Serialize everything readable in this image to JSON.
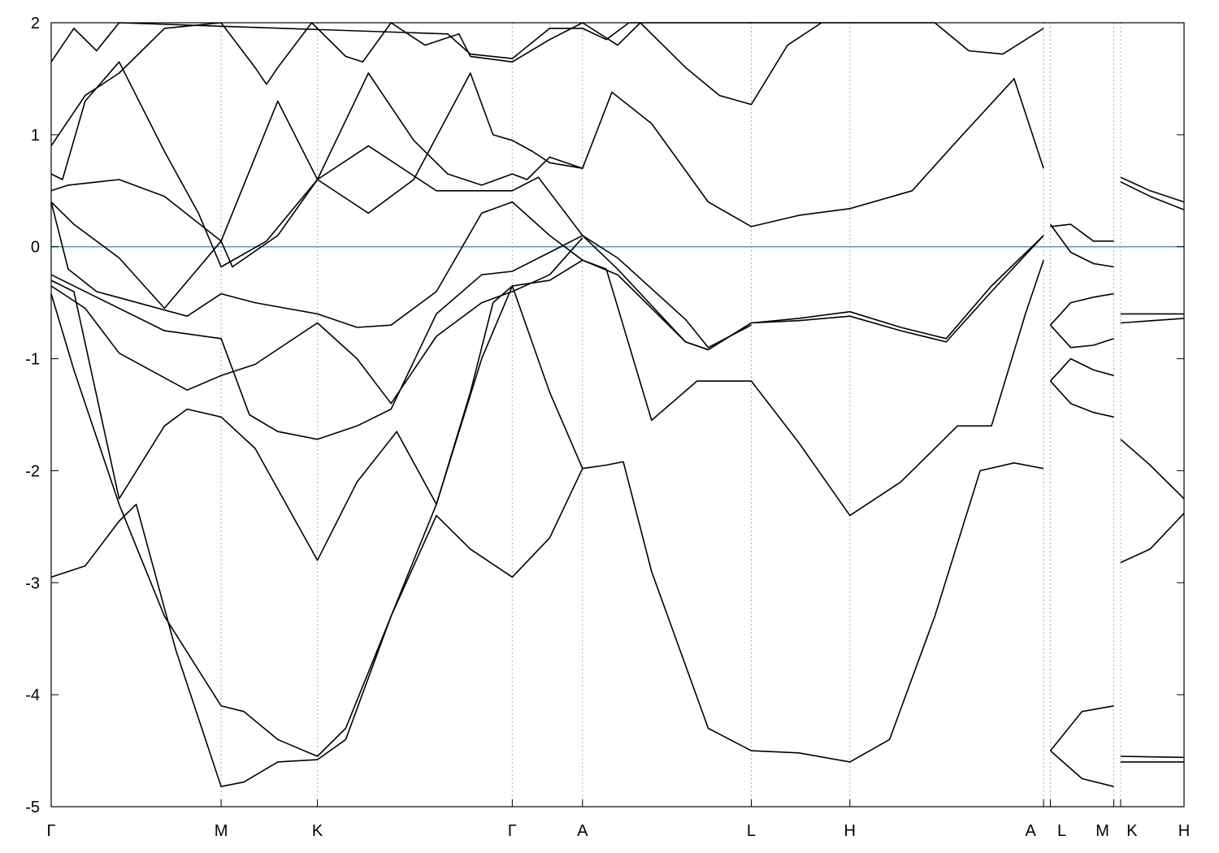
{
  "chart_data": {
    "type": "line",
    "title": "",
    "xlabel": "",
    "ylabel": "",
    "xlim": [
      0,
      10.0
    ],
    "ylim": [
      -5,
      2
    ],
    "y_ticks": [
      2,
      1,
      0,
      -1,
      -2,
      -3,
      -4,
      -5
    ],
    "y_tick_labels": [
      "2",
      "1",
      "0",
      "-1",
      "-2",
      "-3",
      "-4",
      "-5"
    ],
    "k_points": [
      {
        "label": "Γ",
        "x": 0.0
      },
      {
        "label": "M",
        "x": 1.5
      },
      {
        "label": "K",
        "x": 2.35
      },
      {
        "label": "Γ",
        "x": 4.07
      },
      {
        "label": "A",
        "x": 4.69
      },
      {
        "label": "L",
        "x": 6.18
      },
      {
        "label": "H",
        "x": 7.05
      },
      {
        "label": "A",
        "x": 8.76
      },
      {
        "label": "L",
        "x": 8.82
      },
      {
        "label": "M",
        "x": 9.38
      },
      {
        "label": "K",
        "x": 9.44
      },
      {
        "label": "H",
        "x": 10.0
      }
    ],
    "reference_lines": [
      {
        "name": "Fermi level",
        "y": 0,
        "color": "#4aa8c4"
      }
    ],
    "grid": "dashed vertical lines at high-symmetry points",
    "series": [
      {
        "values": [
          [
            0,
            -2.95
          ],
          [
            0.3,
            -2.85
          ],
          [
            0.6,
            -2.45
          ],
          [
            0.75,
            -2.3
          ],
          [
            1.1,
            -3.6
          ],
          [
            1.5,
            -4.82
          ],
          [
            1.7,
            -4.78
          ],
          [
            2.0,
            -4.6
          ],
          [
            2.35,
            -4.58
          ],
          [
            2.6,
            -4.4
          ],
          [
            3.0,
            -3.3
          ],
          [
            3.4,
            -2.4
          ],
          [
            3.7,
            -2.7
          ],
          [
            4.07,
            -2.95
          ],
          [
            4.4,
            -2.6
          ],
          [
            4.69,
            -1.98
          ],
          [
            4.9,
            -1.95
          ],
          [
            5.05,
            -1.92
          ],
          [
            5.3,
            -2.9
          ],
          [
            5.8,
            -4.3
          ],
          [
            6.18,
            -4.5
          ],
          [
            6.6,
            -4.52
          ],
          [
            7.05,
            -4.6
          ],
          [
            7.4,
            -4.4
          ],
          [
            7.8,
            -3.3
          ],
          [
            8.2,
            -2.0
          ],
          [
            8.5,
            -1.93
          ],
          [
            8.76,
            -1.98
          ]
        ]
      },
      {
        "values": [
          [
            0,
            -0.42
          ],
          [
            0.2,
            -1.1
          ],
          [
            0.6,
            -2.3
          ],
          [
            1.0,
            -3.3
          ],
          [
            1.5,
            -4.1
          ],
          [
            1.7,
            -4.15
          ],
          [
            2.0,
            -4.4
          ],
          [
            2.35,
            -4.55
          ],
          [
            2.6,
            -4.3
          ],
          [
            3.0,
            -3.3
          ],
          [
            3.4,
            -2.3
          ],
          [
            3.7,
            -1.3
          ],
          [
            3.9,
            -0.5
          ],
          [
            4.07,
            -0.35
          ],
          [
            4.4,
            -1.3
          ],
          [
            4.69,
            -1.98
          ]
        ]
      },
      {
        "values": [
          [
            0,
            -0.3
          ],
          [
            0.2,
            -0.4
          ],
          [
            0.6,
            -2.25
          ],
          [
            1.0,
            -1.6
          ],
          [
            1.2,
            -1.45
          ],
          [
            1.5,
            -1.52
          ],
          [
            1.8,
            -1.8
          ],
          [
            2.35,
            -2.8
          ],
          [
            2.7,
            -2.1
          ],
          [
            3.05,
            -1.65
          ],
          [
            3.4,
            -2.3
          ],
          [
            3.8,
            -1.0
          ],
          [
            4.07,
            -0.35
          ],
          [
            4.4,
            -0.3
          ],
          [
            4.69,
            -0.12
          ],
          [
            4.9,
            -0.2
          ],
          [
            5.3,
            -1.55
          ],
          [
            5.7,
            -1.2
          ],
          [
            6.18,
            -1.2
          ],
          [
            6.6,
            -1.75
          ],
          [
            7.05,
            -2.4
          ],
          [
            7.5,
            -2.1
          ],
          [
            8.0,
            -1.6
          ],
          [
            8.3,
            -1.6
          ],
          [
            8.6,
            -0.6
          ],
          [
            8.76,
            -0.12
          ]
        ]
      },
      {
        "values": [
          [
            0,
            -0.35
          ],
          [
            0.3,
            -0.55
          ],
          [
            0.6,
            -0.95
          ],
          [
            1.2,
            -1.28
          ],
          [
            1.5,
            -1.15
          ],
          [
            1.8,
            -1.05
          ],
          [
            2.35,
            -0.68
          ],
          [
            2.7,
            -1.0
          ],
          [
            3.0,
            -1.4
          ],
          [
            3.4,
            -0.8
          ],
          [
            3.8,
            -0.5
          ],
          [
            4.07,
            -0.4
          ],
          [
            4.4,
            -0.25
          ],
          [
            4.69,
            0.08
          ]
        ]
      },
      {
        "values": [
          [
            0,
            -0.25
          ],
          [
            0.4,
            -0.45
          ],
          [
            1.0,
            -0.75
          ],
          [
            1.5,
            -0.82
          ],
          [
            1.75,
            -1.5
          ],
          [
            2.0,
            -1.65
          ],
          [
            2.35,
            -1.72
          ],
          [
            2.7,
            -1.6
          ],
          [
            3.0,
            -1.45
          ],
          [
            3.4,
            -0.6
          ],
          [
            3.8,
            -0.25
          ],
          [
            4.07,
            -0.22
          ],
          [
            4.4,
            -0.05
          ],
          [
            4.69,
            0.1
          ],
          [
            5.0,
            -0.2
          ],
          [
            5.6,
            -0.85
          ],
          [
            5.8,
            -0.92
          ],
          [
            6.18,
            -0.68
          ],
          [
            6.6,
            -0.66
          ],
          [
            7.05,
            -0.62
          ],
          [
            7.5,
            -0.75
          ],
          [
            7.9,
            -0.85
          ],
          [
            8.3,
            -0.4
          ],
          [
            8.76,
            0.1
          ]
        ]
      },
      {
        "values": [
          [
            0,
            0.4
          ],
          [
            0.15,
            -0.2
          ],
          [
            0.4,
            -0.4
          ],
          [
            1.2,
            -0.62
          ],
          [
            1.5,
            -0.42
          ],
          [
            1.8,
            -0.5
          ],
          [
            2.35,
            -0.6
          ],
          [
            2.7,
            -0.72
          ],
          [
            3.0,
            -0.7
          ],
          [
            3.4,
            -0.4
          ],
          [
            3.8,
            0.3
          ],
          [
            4.07,
            0.4
          ],
          [
            4.4,
            0.1
          ],
          [
            4.69,
            -0.12
          ],
          [
            5.0,
            -0.25
          ],
          [
            5.6,
            -0.85
          ],
          [
            5.8,
            -0.92
          ],
          [
            6.18,
            -0.68
          ],
          [
            6.6,
            -0.64
          ],
          [
            7.05,
            -0.58
          ],
          [
            7.5,
            -0.72
          ],
          [
            7.9,
            -0.82
          ],
          [
            8.3,
            -0.35
          ],
          [
            8.76,
            0.1
          ]
        ]
      },
      {
        "values": [
          [
            0,
            0.4
          ],
          [
            0.2,
            0.2
          ],
          [
            0.6,
            -0.1
          ],
          [
            1.0,
            -0.55
          ],
          [
            1.5,
            0.05
          ],
          [
            1.8,
            0.8
          ],
          [
            2.0,
            1.3
          ],
          [
            2.35,
            0.6
          ],
          [
            2.8,
            0.3
          ],
          [
            3.2,
            0.6
          ],
          [
            3.7,
            1.55
          ],
          [
            3.9,
            1.0
          ],
          [
            4.07,
            0.95
          ],
          [
            4.25,
            0.85
          ],
          [
            4.4,
            0.75
          ],
          [
            4.69,
            0.7
          ],
          [
            4.95,
            1.38
          ],
          [
            5.3,
            1.1
          ],
          [
            5.8,
            0.4
          ],
          [
            6.18,
            0.18
          ],
          [
            6.6,
            0.28
          ],
          [
            7.05,
            0.34
          ],
          [
            7.6,
            0.5
          ],
          [
            8.0,
            0.95
          ],
          [
            8.5,
            1.5
          ],
          [
            8.76,
            0.7
          ]
        ]
      },
      {
        "values": [
          [
            0,
            0.5
          ],
          [
            0.15,
            0.55
          ],
          [
            0.6,
            0.6
          ],
          [
            1.0,
            0.45
          ],
          [
            1.5,
            0.05
          ],
          [
            1.6,
            -0.18
          ],
          [
            2.0,
            0.1
          ],
          [
            2.35,
            0.6
          ],
          [
            2.8,
            0.9
          ],
          [
            3.4,
            0.5
          ],
          [
            4.07,
            0.5
          ],
          [
            4.3,
            0.62
          ],
          [
            4.69,
            0.1
          ],
          [
            5.0,
            -0.1
          ],
          [
            5.6,
            -0.65
          ],
          [
            5.8,
            -0.9
          ],
          [
            6.18,
            -0.7
          ]
        ]
      },
      {
        "values": [
          [
            0,
            0.65
          ],
          [
            0.1,
            0.6
          ],
          [
            0.3,
            1.3
          ],
          [
            0.6,
            1.65
          ],
          [
            1.0,
            0.85
          ],
          [
            1.3,
            0.3
          ],
          [
            1.5,
            -0.18
          ],
          [
            1.9,
            0.05
          ],
          [
            2.35,
            0.6
          ],
          [
            2.8,
            1.55
          ],
          [
            3.2,
            0.95
          ],
          [
            3.5,
            0.65
          ],
          [
            3.8,
            0.55
          ],
          [
            4.07,
            0.65
          ],
          [
            4.2,
            0.6
          ],
          [
            4.4,
            0.8
          ],
          [
            4.69,
            0.7
          ]
        ]
      },
      {
        "values": [
          [
            0,
            0.9
          ],
          [
            0.3,
            1.35
          ],
          [
            0.6,
            1.55
          ],
          [
            1.0,
            1.95
          ],
          [
            1.5,
            2.0
          ],
          [
            1.8,
            1.6
          ],
          [
            1.9,
            1.45
          ],
          [
            2.0,
            1.6
          ],
          [
            2.3,
            2.0
          ],
          [
            2.6,
            1.7
          ],
          [
            2.75,
            1.65
          ],
          [
            3.0,
            2.0
          ],
          [
            3.3,
            1.8
          ],
          [
            3.6,
            1.9
          ],
          [
            3.7,
            1.7
          ],
          [
            4.07,
            1.65
          ],
          [
            4.4,
            1.85
          ],
          [
            4.69,
            2.0
          ],
          [
            5.0,
            1.8
          ],
          [
            5.2,
            2.0
          ],
          [
            5.6,
            1.6
          ],
          [
            5.9,
            1.35
          ],
          [
            6.18,
            1.27
          ],
          [
            6.5,
            1.8
          ],
          [
            6.8,
            2.0
          ]
        ]
      },
      {
        "values": [
          [
            0,
            1.65
          ],
          [
            0.2,
            1.95
          ],
          [
            0.4,
            1.75
          ],
          [
            0.6,
            2.0
          ],
          [
            3.5,
            1.9
          ],
          [
            3.7,
            1.72
          ],
          [
            4.07,
            1.68
          ],
          [
            4.4,
            1.95
          ],
          [
            4.69,
            1.95
          ],
          [
            4.9,
            1.85
          ],
          [
            5.1,
            2.0
          ],
          [
            7.8,
            2.0
          ],
          [
            8.1,
            1.75
          ],
          [
            8.4,
            1.72
          ],
          [
            8.76,
            1.95
          ]
        ]
      },
      {
        "values": [
          [
            8.82,
            0.18
          ],
          [
            9.0,
            0.2
          ],
          [
            9.2,
            0.05
          ],
          [
            9.38,
            0.05
          ]
        ]
      },
      {
        "values": [
          [
            8.82,
            0.2
          ],
          [
            9.0,
            -0.05
          ],
          [
            9.2,
            -0.15
          ],
          [
            9.38,
            -0.18
          ]
        ]
      },
      {
        "values": [
          [
            8.82,
            -0.7
          ],
          [
            9.0,
            -0.5
          ],
          [
            9.2,
            -0.45
          ],
          [
            9.38,
            -0.42
          ]
        ]
      },
      {
        "values": [
          [
            8.82,
            -0.7
          ],
          [
            9.0,
            -0.9
          ],
          [
            9.2,
            -0.88
          ],
          [
            9.38,
            -0.82
          ]
        ]
      },
      {
        "values": [
          [
            8.82,
            -1.2
          ],
          [
            9.0,
            -1.0
          ],
          [
            9.2,
            -1.1
          ],
          [
            9.38,
            -1.15
          ]
        ]
      },
      {
        "values": [
          [
            8.82,
            -1.2
          ],
          [
            9.0,
            -1.4
          ],
          [
            9.2,
            -1.48
          ],
          [
            9.38,
            -1.52
          ]
        ]
      },
      {
        "values": [
          [
            8.82,
            -4.5
          ],
          [
            9.1,
            -4.15
          ],
          [
            9.38,
            -4.1
          ]
        ]
      },
      {
        "values": [
          [
            8.82,
            -4.5
          ],
          [
            9.1,
            -4.75
          ],
          [
            9.38,
            -4.82
          ]
        ]
      },
      {
        "values": [
          [
            9.44,
            0.62
          ],
          [
            9.7,
            0.5
          ],
          [
            10.0,
            0.4
          ]
        ]
      },
      {
        "values": [
          [
            9.44,
            0.58
          ],
          [
            9.7,
            0.45
          ],
          [
            10.0,
            0.33
          ]
        ]
      },
      {
        "values": [
          [
            9.44,
            -0.6
          ],
          [
            10.0,
            -0.6
          ]
        ]
      },
      {
        "values": [
          [
            9.44,
            -0.68
          ],
          [
            10.0,
            -0.64
          ]
        ]
      },
      {
        "values": [
          [
            9.44,
            -1.72
          ],
          [
            9.7,
            -1.95
          ],
          [
            10.0,
            -2.25
          ]
        ]
      },
      {
        "values": [
          [
            9.44,
            -2.82
          ],
          [
            9.7,
            -2.7
          ],
          [
            10.0,
            -2.38
          ]
        ]
      },
      {
        "values": [
          [
            9.44,
            -4.55
          ],
          [
            10.0,
            -4.56
          ]
        ]
      },
      {
        "values": [
          [
            9.44,
            -4.6
          ],
          [
            10.0,
            -4.6
          ]
        ]
      }
    ]
  }
}
